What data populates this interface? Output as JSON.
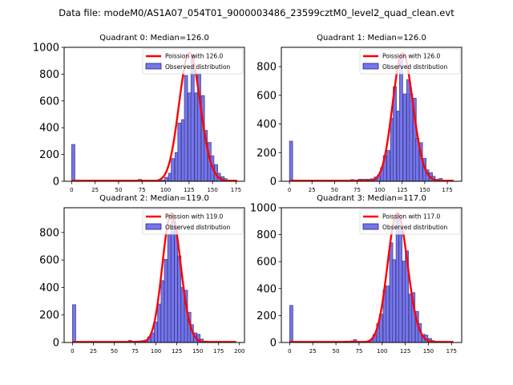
{
  "chart_data": {
    "type": "bar",
    "suptitle": "Data file: modeM0/AS1A07_054T01_9000003486_23599cztM0_level2_quad_clean.evt",
    "colors": {
      "bar_fill": "#7575ee",
      "bar_edge": "#2a2a6a",
      "poisson_line": "#ff0000"
    },
    "panels": [
      {
        "title": "Quadrant 0: Median=126.0",
        "median": 126.0,
        "xlim": [
          -8,
          184
        ],
        "ylim": [
          0,
          1000
        ],
        "xticks": [
          0,
          25,
          50,
          75,
          100,
          125,
          150,
          175
        ],
        "yticks": [
          0,
          200,
          400,
          600,
          800,
          1000
        ],
        "bin_width": 3.5,
        "legend": {
          "position": "upper right",
          "line_label": "Poission with 126.0",
          "bar_label": "Observed distribution"
        },
        "poisson_peak": 960,
        "poisson_range": [
          0,
          176
        ],
        "bins": [
          [
            0,
            275
          ],
          [
            67,
            4
          ],
          [
            71,
            14
          ],
          [
            75,
            6
          ],
          [
            78,
            5
          ],
          [
            82,
            4
          ],
          [
            85,
            4
          ],
          [
            89,
            5
          ],
          [
            92,
            6
          ],
          [
            96,
            10
          ],
          [
            99,
            30
          ],
          [
            103,
            60
          ],
          [
            106,
            170
          ],
          [
            110,
            215
          ],
          [
            113,
            435
          ],
          [
            117,
            460
          ],
          [
            120,
            790
          ],
          [
            124,
            660
          ],
          [
            127,
            950
          ],
          [
            131,
            660
          ],
          [
            134,
            800
          ],
          [
            138,
            640
          ],
          [
            141,
            380
          ],
          [
            145,
            290
          ],
          [
            148,
            190
          ],
          [
            152,
            125
          ],
          [
            155,
            60
          ],
          [
            159,
            35
          ],
          [
            162,
            20
          ],
          [
            166,
            8
          ],
          [
            169,
            4
          ],
          [
            173,
            2
          ]
        ]
      },
      {
        "title": "Quadrant 1: Median=126.0",
        "median": 126.0,
        "xlim": [
          -9,
          191
        ],
        "ylim": [
          0,
          935
        ],
        "xticks": [
          0,
          25,
          50,
          75,
          100,
          125,
          150,
          175
        ],
        "yticks": [
          0,
          200,
          400,
          600,
          800
        ],
        "bin_width": 3.6,
        "legend": {
          "position": "upper right",
          "line_label": "Poission with 126.0",
          "bar_label": "Observed distribution"
        },
        "poisson_peak": 895,
        "poisson_range": [
          0,
          182
        ],
        "bins": [
          [
            0,
            280
          ],
          [
            68,
            12
          ],
          [
            72,
            8
          ],
          [
            76,
            14
          ],
          [
            79,
            14
          ],
          [
            83,
            14
          ],
          [
            86,
            14
          ],
          [
            90,
            18
          ],
          [
            94,
            30
          ],
          [
            97,
            40
          ],
          [
            101,
            95
          ],
          [
            104,
            180
          ],
          [
            108,
            215
          ],
          [
            112,
            440
          ],
          [
            115,
            660
          ],
          [
            119,
            490
          ],
          [
            122,
            880
          ],
          [
            126,
            610
          ],
          [
            130,
            710
          ],
          [
            133,
            610
          ],
          [
            137,
            580
          ],
          [
            140,
            300
          ],
          [
            144,
            270
          ],
          [
            148,
            160
          ],
          [
            151,
            80
          ],
          [
            155,
            60
          ],
          [
            158,
            35
          ],
          [
            162,
            14
          ],
          [
            166,
            20
          ],
          [
            169,
            5
          ],
          [
            173,
            4
          ],
          [
            176,
            4
          ]
        ]
      },
      {
        "title": "Quadrant 2: Median=119.0",
        "median": 119.0,
        "xlim": [
          -10,
          206
        ],
        "ylim": [
          0,
          980
        ],
        "xticks": [
          0,
          25,
          50,
          75,
          100,
          125,
          150,
          175,
          200
        ],
        "yticks": [
          0,
          200,
          400,
          600,
          800
        ],
        "bin_width": 3.9,
        "legend": {
          "position": "upper right",
          "line_label": "Poission with 119.0",
          "bar_label": "Observed distribution"
        },
        "poisson_peak": 940,
        "poisson_range": [
          0,
          196
        ],
        "bins": [
          [
            0,
            275
          ],
          [
            59,
            8
          ],
          [
            63,
            6
          ],
          [
            67,
            15
          ],
          [
            71,
            8
          ],
          [
            75,
            10
          ],
          [
            79,
            12
          ],
          [
            83,
            14
          ],
          [
            86,
            18
          ],
          [
            90,
            40
          ],
          [
            94,
            70
          ],
          [
            98,
            150
          ],
          [
            102,
            280
          ],
          [
            106,
            450
          ],
          [
            110,
            605
          ],
          [
            114,
            790
          ],
          [
            118,
            920
          ],
          [
            122,
            850
          ],
          [
            126,
            630
          ],
          [
            130,
            400
          ],
          [
            134,
            380
          ],
          [
            138,
            220
          ],
          [
            141,
            130
          ],
          [
            145,
            70
          ],
          [
            149,
            60
          ],
          [
            153,
            25
          ],
          [
            157,
            10
          ],
          [
            161,
            5
          ],
          [
            165,
            4
          ],
          [
            169,
            3
          ]
        ]
      },
      {
        "title": "Quadrant 3: Median=117.0",
        "median": 117.0,
        "xlim": [
          -9,
          186
        ],
        "ylim": [
          0,
          1000
        ],
        "xticks": [
          0,
          25,
          50,
          75,
          100,
          125,
          150,
          175
        ],
        "yticks": [
          0,
          200,
          400,
          600,
          800,
          1000
        ],
        "bin_width": 3.5,
        "legend": {
          "position": "upper right",
          "line_label": "Poission with 117.0",
          "bar_label": "Observed distribution"
        },
        "poisson_peak": 960,
        "poisson_range": [
          0,
          177
        ],
        "bins": [
          [
            0,
            275
          ],
          [
            59,
            10
          ],
          [
            62,
            10
          ],
          [
            66,
            12
          ],
          [
            69,
            22
          ],
          [
            73,
            6
          ],
          [
            76,
            6
          ],
          [
            80,
            8
          ],
          [
            83,
            12
          ],
          [
            87,
            20
          ],
          [
            90,
            60
          ],
          [
            94,
            140
          ],
          [
            97,
            210
          ],
          [
            101,
            390
          ],
          [
            104,
            420
          ],
          [
            108,
            740
          ],
          [
            111,
            615
          ],
          [
            115,
            960
          ],
          [
            118,
            850
          ],
          [
            122,
            605
          ],
          [
            125,
            680
          ],
          [
            129,
            360
          ],
          [
            132,
            370
          ],
          [
            136,
            230
          ],
          [
            139,
            140
          ],
          [
            143,
            60
          ],
          [
            146,
            55
          ],
          [
            150,
            30
          ],
          [
            153,
            14
          ],
          [
            157,
            8
          ],
          [
            160,
            4
          ],
          [
            164,
            3
          ]
        ]
      }
    ]
  }
}
